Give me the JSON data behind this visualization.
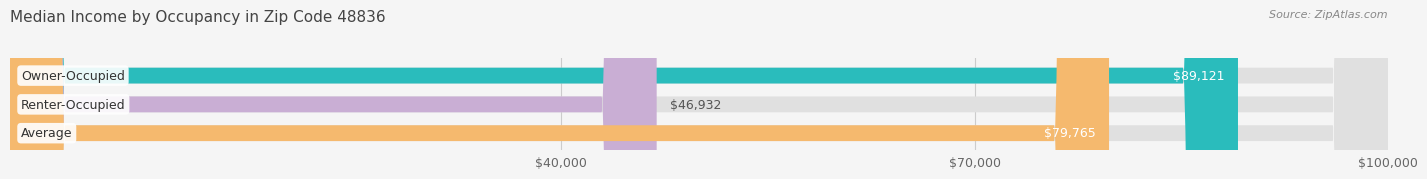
{
  "title": "Median Income by Occupancy in Zip Code 48836",
  "source": "Source: ZipAtlas.com",
  "categories": [
    "Owner-Occupied",
    "Renter-Occupied",
    "Average"
  ],
  "values": [
    89121,
    46932,
    79765
  ],
  "labels": [
    "$89,121",
    "$46,932",
    "$79,765"
  ],
  "bar_colors": [
    "#2abcbc",
    "#c9aed4",
    "#f5b96e"
  ],
  "xlim_min": 0,
  "xlim_max": 100000,
  "xticks": [
    40000,
    70000,
    100000
  ],
  "xtick_labels": [
    "$40,000",
    "$70,000",
    "$100,000"
  ],
  "background_color": "#f5f5f5",
  "bar_bg_color": "#e0e0e0",
  "title_fontsize": 11,
  "label_fontsize": 9,
  "tick_fontsize": 9,
  "bar_height": 0.55
}
